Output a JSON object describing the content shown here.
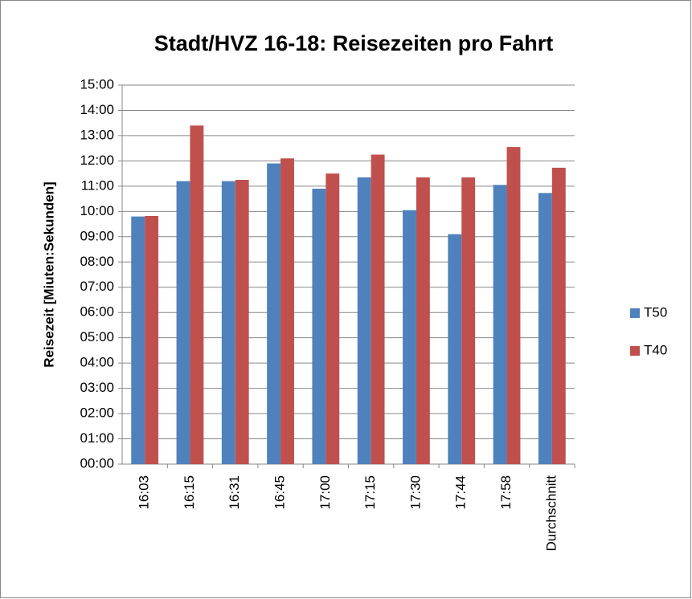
{
  "chart_data": {
    "type": "bar",
    "title": "Stadt/HVZ 16-18: Reisezeiten pro Fahrt",
    "y_label": "Reisezeit [Miuten:Sekunden]",
    "categories": [
      "16:03",
      "16:15",
      "16:31",
      "16:45",
      "17:00",
      "17:15",
      "17:30",
      "17:44",
      "17:58",
      "Durchschnitt"
    ],
    "series": [
      {
        "name": "T50",
        "color": "#4f81bd",
        "values": [
          9.8,
          11.2,
          11.2,
          11.9,
          10.9,
          11.35,
          10.05,
          9.1,
          11.05,
          10.73
        ]
      },
      {
        "name": "T40",
        "color": "#c0504d",
        "values": [
          9.82,
          13.4,
          11.25,
          12.1,
          11.5,
          12.25,
          11.35,
          11.35,
          12.55,
          11.73
        ]
      }
    ],
    "ylim": [
      0,
      15
    ],
    "yticks": [
      {
        "value": 0,
        "label": "00:00"
      },
      {
        "value": 1,
        "label": "01:00"
      },
      {
        "value": 2,
        "label": "02:00"
      },
      {
        "value": 3,
        "label": "03:00"
      },
      {
        "value": 4,
        "label": "04:00"
      },
      {
        "value": 5,
        "label": "05:00"
      },
      {
        "value": 6,
        "label": "06:00"
      },
      {
        "value": 7,
        "label": "07:00"
      },
      {
        "value": 8,
        "label": "08:00"
      },
      {
        "value": 9,
        "label": "09:00"
      },
      {
        "value": 10,
        "label": "10:00"
      },
      {
        "value": 11,
        "label": "11:00"
      },
      {
        "value": 12,
        "label": "12:00"
      },
      {
        "value": 13,
        "label": "13:00"
      },
      {
        "value": 14,
        "label": "14:00"
      },
      {
        "value": 15,
        "label": "15:00"
      }
    ],
    "grid": true,
    "legend": "right"
  }
}
